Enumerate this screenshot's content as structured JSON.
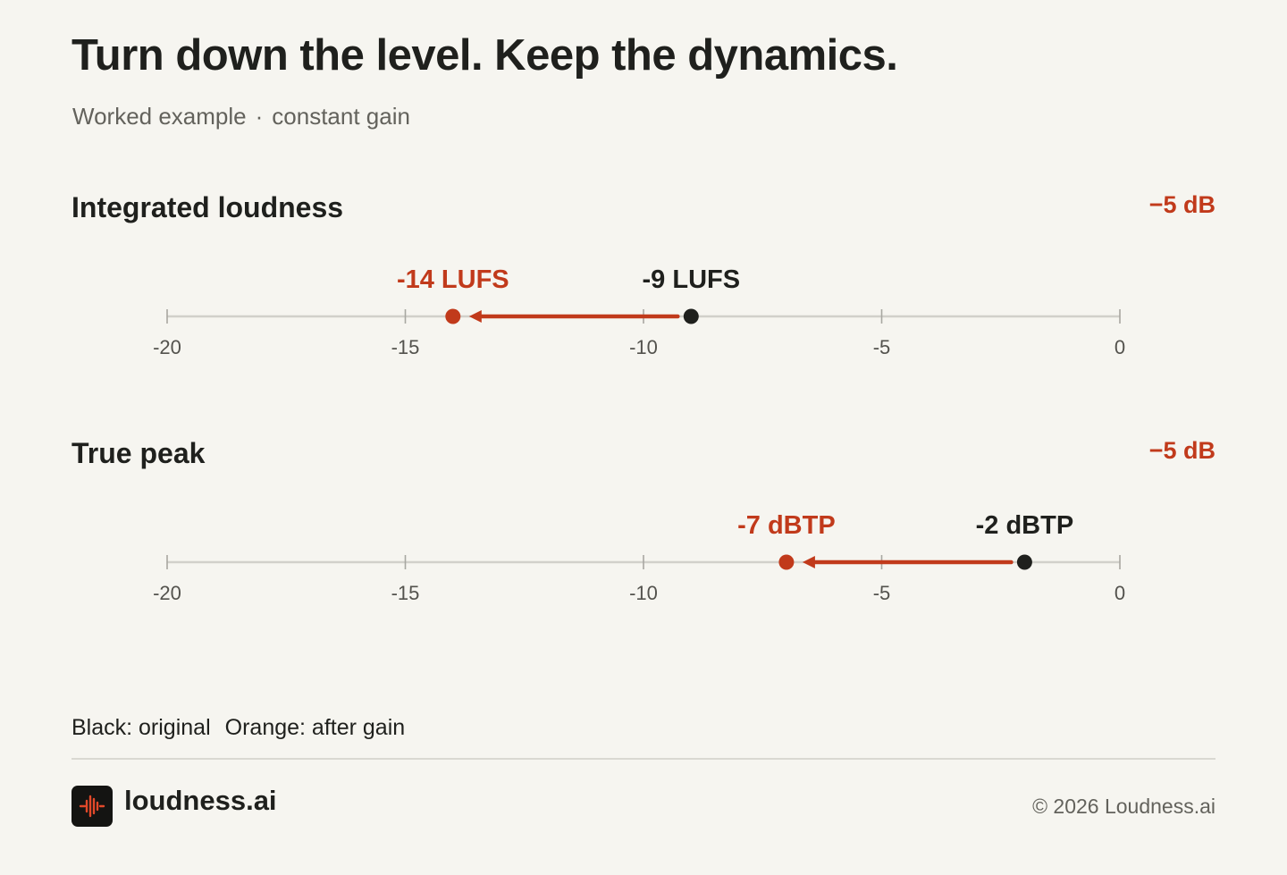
{
  "title": "Turn down the level. Keep the dynamics.",
  "subtitle": {
    "left": "Worked example",
    "separator": "·",
    "right": "constant gain"
  },
  "colors": {
    "original": "#1f201d",
    "after": "#c13a1b",
    "track": "#d1d0ca",
    "background": "#f6f5f0"
  },
  "chart_data": [
    {
      "type": "dumbbell",
      "title": "Integrated loudness",
      "delta_label": "−5 dB",
      "xlim": [
        -20,
        0
      ],
      "ticks": [
        -20,
        -15,
        -10,
        -5,
        0
      ],
      "tick_labels": [
        "-20",
        "-15",
        "-10",
        "-5",
        "0"
      ],
      "original": {
        "value": -9,
        "label": "-9 LUFS"
      },
      "after": {
        "value": -14,
        "label": "-14 LUFS"
      }
    },
    {
      "type": "dumbbell",
      "title": "True peak",
      "delta_label": "−5 dB",
      "xlim": [
        -20,
        0
      ],
      "ticks": [
        -20,
        -15,
        -10,
        -5,
        0
      ],
      "tick_labels": [
        "-20",
        "-15",
        "-10",
        "-5",
        "0"
      ],
      "original": {
        "value": -2,
        "label": "-2 dBTP"
      },
      "after": {
        "value": -7,
        "label": "-7 dBTP"
      }
    }
  ],
  "legend": {
    "original": "Black: original",
    "after": "Orange: after gain"
  },
  "footer": {
    "logo_icon": "waveform-icon",
    "brand": "loudness.ai",
    "copyright": "© 2026 Loudness.ai"
  }
}
